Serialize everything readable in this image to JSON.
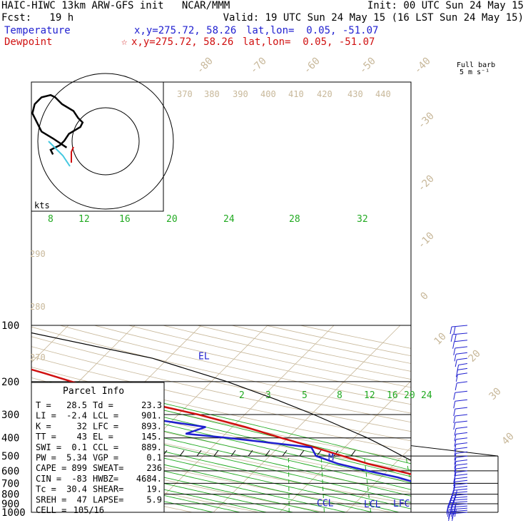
{
  "header": {
    "title": "HAIC-HIWC 13km ARW-GFS init   NCAR/MMM",
    "init": "Init: 00 UTC Sun 24 May 15",
    "fcst": "Fcst:   19 h",
    "valid": "Valid: 19 UTC Sun 24 May 15 (16 LST Sun 24 May 15)",
    "temp_label": "Temperature",
    "temp_xy": "x,y=275.72, 58.26",
    "temp_latlon": "lat,lon=  0.05, -51.07",
    "dew_label": "Dewpoint",
    "dew_xy": "x,y=275.72, 58.26",
    "dew_latlon": "lat,lon=  0.05, -51.07"
  },
  "barb_header": {
    "line1": "Full barb",
    "line2": "5 m s⁻¹"
  },
  "hodograph": {
    "units_label": "kts"
  },
  "parcel": {
    "title": "Parcel Info",
    "rows": [
      [
        "T   =",
        "28.5",
        "Td  =",
        "23.3"
      ],
      [
        "LI  =",
        "-2.4",
        "LCL =",
        "901."
      ],
      [
        "K   =",
        "32",
        "LFC =",
        "893."
      ],
      [
        "TT  =",
        "43",
        "EL  =",
        "145."
      ],
      [
        "SWI =",
        "0.1",
        "CCL =",
        "889."
      ],
      [
        "PW  =",
        "5.34",
        "VGP =",
        "0.1"
      ],
      [
        "CAPE =",
        "899",
        "SWEAT=",
        "236"
      ],
      [
        "CIN  =",
        "-83",
        "HWBZ=",
        "4684."
      ],
      [
        "Tc  =",
        "30.4",
        "SHEAR=",
        "19."
      ],
      [
        "SREH =",
        "47",
        "LAPSE=",
        "5.9"
      ],
      [
        "CELL =",
        "105/16",
        "",
        ""
      ]
    ]
  },
  "chart_data": {
    "type": "line",
    "title": "",
    "xlabel": "",
    "ylabel": "",
    "y_scale": "log",
    "pressure_levels": [
      "100",
      "200",
      "300",
      "400",
      "500",
      "600",
      "700",
      "800",
      "900",
      "1000"
    ],
    "isotherms": [
      "-80",
      "-70",
      "-60",
      "-50",
      "-40",
      "-30",
      "-20",
      "-10",
      "0",
      "10",
      "20",
      "30",
      "40"
    ],
    "dry_adiabats": [
      "370",
      "380",
      "390",
      "400",
      "410",
      "420",
      "430",
      "440",
      "290",
      "280",
      "270"
    ],
    "moist_adiabats": [
      "8",
      "12",
      "16",
      "20",
      "24",
      "28",
      "32"
    ],
    "mixing_ratios": [
      "2",
      "3",
      "5",
      "8",
      "12",
      "16",
      "20",
      "24"
    ],
    "level_labels": [
      "EL",
      "M",
      "CCL",
      "LCL",
      "LFC"
    ],
    "colors": {
      "temperature": "#d01010",
      "dewpoint": "#1f1fd0",
      "parcel": "#000000",
      "isotherm": "#c8b89a",
      "moist": "#22aa22",
      "barb": "#1f1fd0",
      "hodo": "#000000",
      "hodo_cyan": "#44c8e0"
    },
    "series": [
      {
        "name": "Temperature",
        "p": [
          1000,
          980,
          950,
          920,
          900,
          880,
          860,
          850,
          825,
          800,
          775,
          750,
          700,
          650,
          600,
          550,
          500,
          450,
          400,
          350,
          300,
          270,
          250,
          230,
          200,
          180,
          160,
          150,
          140,
          130,
          120,
          110,
          100
        ],
        "t": [
          28.5,
          27.0,
          24.5,
          22.5,
          21.0,
          20.0,
          19.8,
          19.5,
          18.7,
          17.7,
          16.5,
          15.0,
          11.0,
          6.5,
          1.5,
          -4.0,
          -9.0,
          -14.5,
          -21.0,
          -28.0,
          -37.0,
          -44.0,
          -48.5,
          -54.0,
          -61.0,
          -66.5,
          -73.0,
          -76.5,
          -80.0,
          -81.5,
          -82.5,
          -82.0,
          -80.5
        ]
      },
      {
        "name": "Dewpoint",
        "p": [
          1000,
          980,
          950,
          920,
          900,
          880,
          860,
          850,
          825,
          800,
          775,
          750,
          700,
          650,
          600,
          550,
          500,
          450,
          400,
          380,
          350,
          320,
          300,
          280,
          270,
          260,
          250,
          240,
          230,
          220,
          200,
          180,
          160,
          150,
          140,
          130,
          120,
          110,
          100
        ],
        "t": [
          23.3,
          22.6,
          21.5,
          20.5,
          19.5,
          18.7,
          17.5,
          16.5,
          14.5,
          12.5,
          11.0,
          9.5,
          6.5,
          2.5,
          -3.0,
          -8.5,
          -13.0,
          -15.0,
          -29.0,
          -36.0,
          -34.0,
          -42.5,
          -49.0,
          -58.5,
          -63.0,
          -58.5,
          -56.0,
          -62.5,
          -63.5,
          -64.0,
          -68.0,
          -74.0,
          -80.0,
          -86.0,
          -93.0,
          -95.0,
          -95.5,
          -95.5,
          -95.0
        ]
      },
      {
        "name": "",
        "p": [
          1000,
          950,
          920,
          901,
          880,
          850,
          800,
          750,
          700,
          650,
          600,
          550,
          500,
          450,
          400,
          350,
          300,
          250,
          200,
          150,
          100
        ],
        "t": [
          28.5,
          24.2,
          21.5,
          20.2,
          18.5,
          17.3,
          15.5,
          13.3,
          11.4,
          9.0,
          6.7,
          3.5,
          0.0,
          -3.7,
          -8.0,
          -13.4,
          -19.6,
          -27.4,
          -37.6,
          -52.4,
          -81.0
        ]
      }
    ],
    "wind_barbs": {
      "p": [
        1000,
        975,
        950,
        925,
        900,
        875,
        850,
        825,
        800,
        775,
        750,
        725,
        700,
        675,
        650,
        625,
        600,
        575,
        550,
        525,
        500,
        475,
        450,
        425,
        400,
        375,
        350,
        325,
        300,
        275,
        250,
        225,
        200,
        180,
        170,
        160,
        150,
        140,
        130,
        120,
        110,
        100
      ],
      "ms": [
        12,
        12,
        13,
        14,
        14,
        13,
        12,
        11,
        10,
        9,
        8,
        7,
        6,
        6,
        6,
        6,
        5,
        5,
        5,
        5,
        5,
        5,
        5,
        5,
        5,
        5,
        5,
        6,
        6,
        6,
        6,
        6,
        4,
        3,
        3,
        2,
        4,
        5,
        6,
        7,
        9,
        10
      ]
    },
    "hodograph": {
      "u_kts": [
        -3,
        -9,
        -14,
        -16,
        -18,
        -17,
        -14,
        -10,
        -8,
        -5,
        0,
        2,
        4,
        3,
        -2,
        -4,
        -6,
        -8,
        -10,
        -9
      ],
      "v_kts": [
        -9,
        -5,
        -2,
        2,
        6,
        10,
        13,
        14,
        13,
        10,
        7,
        4,
        2,
        0,
        -3,
        -6,
        -8,
        -9,
        -10,
        -12
      ]
    }
  }
}
